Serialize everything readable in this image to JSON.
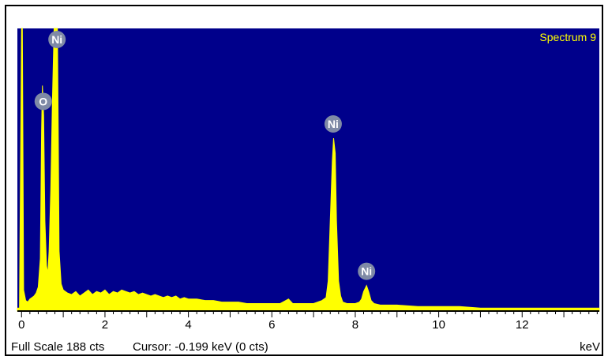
{
  "chart_data": {
    "type": "line",
    "title": "Spectrum 9",
    "xlabel": "keV",
    "xlim": [
      -0.1,
      13.85
    ],
    "ylim": [
      0,
      188
    ],
    "x_ticks": [
      0,
      2,
      4,
      6,
      8,
      10,
      12
    ],
    "x_minor_step": 0.2,
    "grid": false,
    "background_color": "#00008b",
    "trace_color": "#ffff00",
    "frame_color": "#000000",
    "marker_fill": "#7f8aa6",
    "full_scale_text": "Full Scale 188 cts",
    "cursor_text": "Cursor: -0.199 keV (0 cts)",
    "peaks": [
      {
        "label": "O",
        "energy": 0.52,
        "counts": 130
      },
      {
        "label": "Ni",
        "energy": 0.85,
        "counts": 188
      },
      {
        "label": "Ni",
        "energy": 7.47,
        "counts": 115
      },
      {
        "label": "Ni",
        "energy": 8.27,
        "counts": 17
      }
    ],
    "series": [
      {
        "values": [
          [
            -0.1,
            2
          ],
          [
            -0.05,
            2
          ],
          [
            0.0,
            188
          ],
          [
            0.02,
            188
          ],
          [
            0.05,
            14
          ],
          [
            0.1,
            7
          ],
          [
            0.15,
            6
          ],
          [
            0.2,
            8
          ],
          [
            0.25,
            9
          ],
          [
            0.3,
            10
          ],
          [
            0.35,
            12
          ],
          [
            0.4,
            16
          ],
          [
            0.45,
            35
          ],
          [
            0.48,
            120
          ],
          [
            0.5,
            150
          ],
          [
            0.53,
            130
          ],
          [
            0.56,
            60
          ],
          [
            0.6,
            30
          ],
          [
            0.63,
            25
          ],
          [
            0.66,
            40
          ],
          [
            0.7,
            80
          ],
          [
            0.74,
            140
          ],
          [
            0.78,
            188
          ],
          [
            0.82,
            188
          ],
          [
            0.86,
            188
          ],
          [
            0.88,
            120
          ],
          [
            0.9,
            40
          ],
          [
            0.95,
            18
          ],
          [
            1.0,
            14
          ],
          [
            1.1,
            12
          ],
          [
            1.2,
            11
          ],
          [
            1.3,
            13
          ],
          [
            1.4,
            10
          ],
          [
            1.5,
            12
          ],
          [
            1.6,
            14
          ],
          [
            1.7,
            11
          ],
          [
            1.8,
            13
          ],
          [
            1.9,
            12
          ],
          [
            2.0,
            14
          ],
          [
            2.1,
            11
          ],
          [
            2.2,
            13
          ],
          [
            2.3,
            12
          ],
          [
            2.4,
            14
          ],
          [
            2.5,
            13
          ],
          [
            2.6,
            12
          ],
          [
            2.7,
            13
          ],
          [
            2.8,
            11
          ],
          [
            2.9,
            12
          ],
          [
            3.0,
            11
          ],
          [
            3.1,
            10
          ],
          [
            3.2,
            11
          ],
          [
            3.3,
            10
          ],
          [
            3.4,
            9
          ],
          [
            3.5,
            10
          ],
          [
            3.6,
            9
          ],
          [
            3.7,
            10
          ],
          [
            3.8,
            8
          ],
          [
            3.9,
            9
          ],
          [
            4.0,
            8
          ],
          [
            4.2,
            8
          ],
          [
            4.4,
            7
          ],
          [
            4.6,
            7
          ],
          [
            4.8,
            6
          ],
          [
            5.0,
            6
          ],
          [
            5.2,
            6
          ],
          [
            5.4,
            5
          ],
          [
            5.6,
            5
          ],
          [
            5.8,
            5
          ],
          [
            6.0,
            5
          ],
          [
            6.2,
            5
          ],
          [
            6.4,
            8
          ],
          [
            6.5,
            5
          ],
          [
            6.6,
            5
          ],
          [
            6.8,
            5
          ],
          [
            7.0,
            5
          ],
          [
            7.1,
            6
          ],
          [
            7.2,
            7
          ],
          [
            7.3,
            9
          ],
          [
            7.35,
            20
          ],
          [
            7.4,
            60
          ],
          [
            7.45,
            100
          ],
          [
            7.48,
            115
          ],
          [
            7.52,
            105
          ],
          [
            7.55,
            60
          ],
          [
            7.6,
            20
          ],
          [
            7.65,
            10
          ],
          [
            7.7,
            6
          ],
          [
            7.8,
            5
          ],
          [
            8.0,
            5
          ],
          [
            8.1,
            6
          ],
          [
            8.15,
            8
          ],
          [
            8.2,
            13
          ],
          [
            8.27,
            17
          ],
          [
            8.32,
            13
          ],
          [
            8.38,
            7
          ],
          [
            8.45,
            5
          ],
          [
            8.6,
            4
          ],
          [
            8.8,
            4
          ],
          [
            9.0,
            4
          ],
          [
            9.5,
            3
          ],
          [
            10.0,
            3
          ],
          [
            10.5,
            3
          ],
          [
            11.0,
            2
          ],
          [
            11.5,
            2
          ],
          [
            12.0,
            2
          ],
          [
            12.5,
            2
          ],
          [
            13.0,
            2
          ],
          [
            13.5,
            2
          ],
          [
            13.85,
            2
          ]
        ]
      }
    ]
  }
}
